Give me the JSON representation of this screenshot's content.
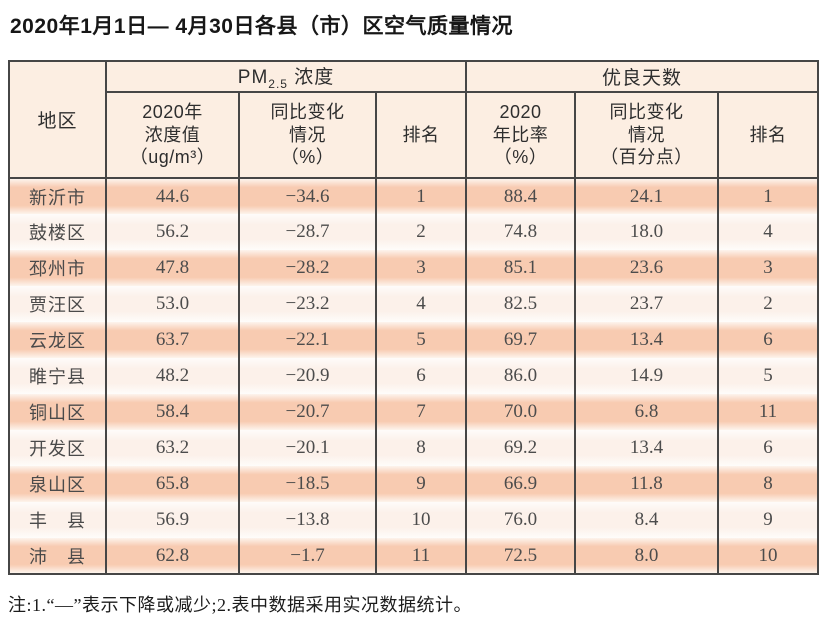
{
  "title": "2020年1月1日— 4月30日各县（市）区空气质量情况",
  "note": "注:1.“—”表示下降或减少;2.表中数据采用实况数据统计。",
  "table": {
    "region_header": "地区",
    "pm_group": {
      "prefix": "PM",
      "sub": "2.5",
      "suffix": " 浓度"
    },
    "good_group": "优良天数",
    "sub_headers": {
      "pm_value": "2020年\n浓度值\n（ug/m³）",
      "pm_change": "同比变化\n情况\n（%）",
      "pm_rank": "排名",
      "good_ratio": "2020\n年比率\n（%）",
      "good_change": "同比变化\n情况\n（百分点）",
      "good_rank": "排名"
    },
    "rows": [
      {
        "region": "新沂市",
        "pm_value": "44.6",
        "pm_change": "−34.6",
        "pm_rank": "1",
        "good_ratio": "88.4",
        "good_change": "24.1",
        "good_rank": "1"
      },
      {
        "region": "鼓楼区",
        "pm_value": "56.2",
        "pm_change": "−28.7",
        "pm_rank": "2",
        "good_ratio": "74.8",
        "good_change": "18.0",
        "good_rank": "4"
      },
      {
        "region": "邳州市",
        "pm_value": "47.8",
        "pm_change": "−28.2",
        "pm_rank": "3",
        "good_ratio": "85.1",
        "good_change": "23.6",
        "good_rank": "3"
      },
      {
        "region": "贾汪区",
        "pm_value": "53.0",
        "pm_change": "−23.2",
        "pm_rank": "4",
        "good_ratio": "82.5",
        "good_change": "23.7",
        "good_rank": "2"
      },
      {
        "region": "云龙区",
        "pm_value": "63.7",
        "pm_change": "−22.1",
        "pm_rank": "5",
        "good_ratio": "69.7",
        "good_change": "13.4",
        "good_rank": "6"
      },
      {
        "region": "睢宁县",
        "pm_value": "48.2",
        "pm_change": "−20.9",
        "pm_rank": "6",
        "good_ratio": "86.0",
        "good_change": "14.9",
        "good_rank": "5"
      },
      {
        "region": "铜山区",
        "pm_value": "58.4",
        "pm_change": "−20.7",
        "pm_rank": "7",
        "good_ratio": "70.0",
        "good_change": "6.8",
        "good_rank": "11"
      },
      {
        "region": "开发区",
        "pm_value": "63.2",
        "pm_change": "−20.1",
        "pm_rank": "8",
        "good_ratio": "69.2",
        "good_change": "13.4",
        "good_rank": "6"
      },
      {
        "region": "泉山区",
        "pm_value": "65.8",
        "pm_change": "−18.5",
        "pm_rank": "9",
        "good_ratio": "66.9",
        "good_change": "11.8",
        "good_rank": "8"
      },
      {
        "region": "丰　县",
        "pm_value": "56.9",
        "pm_change": "−13.8",
        "pm_rank": "10",
        "good_ratio": "76.0",
        "good_change": "8.4",
        "good_rank": "9"
      },
      {
        "region": "沛　县",
        "pm_value": "62.8",
        "pm_change": "−1.7",
        "pm_rank": "11",
        "good_ratio": "72.5",
        "good_change": "8.0",
        "good_rank": "10"
      }
    ]
  },
  "colors": {
    "row_dark": "#f8cbb1",
    "row_light": "#fcf1ea",
    "header_bg": "#fceee2",
    "border": "#464646"
  },
  "chart_data": {
    "type": "table",
    "title": "2020年1月1日—4月30日各县（市）区空气质量情况",
    "column_groups": [
      "PM2.5浓度",
      "优良天数"
    ],
    "columns": [
      "地区",
      "PM2.5 2020年浓度值（ug/m³）",
      "PM2.5 同比变化情况（%）",
      "PM2.5 排名",
      "优良天数 2020年比率（%）",
      "优良天数 同比变化情况（百分点）",
      "优良天数 排名"
    ],
    "rows": [
      [
        "新沂市",
        44.6,
        -34.6,
        1,
        88.4,
        24.1,
        1
      ],
      [
        "鼓楼区",
        56.2,
        -28.7,
        2,
        74.8,
        18.0,
        4
      ],
      [
        "邳州市",
        47.8,
        -28.2,
        3,
        85.1,
        23.6,
        3
      ],
      [
        "贾汪区",
        53.0,
        -23.2,
        4,
        82.5,
        23.7,
        2
      ],
      [
        "云龙区",
        63.7,
        -22.1,
        5,
        69.7,
        13.4,
        6
      ],
      [
        "睢宁县",
        48.2,
        -20.9,
        6,
        86.0,
        14.9,
        5
      ],
      [
        "铜山区",
        58.4,
        -20.7,
        7,
        70.0,
        6.8,
        11
      ],
      [
        "开发区",
        63.2,
        -20.1,
        8,
        69.2,
        13.4,
        6
      ],
      [
        "泉山区",
        65.8,
        -18.5,
        9,
        66.9,
        11.8,
        8
      ],
      [
        "丰县",
        56.9,
        -13.8,
        10,
        76.0,
        8.4,
        9
      ],
      [
        "沛县",
        62.8,
        -1.7,
        11,
        72.5,
        8.0,
        10
      ]
    ],
    "footnote": "注:1.“—”表示下降或减少;2.表中数据采用实况数据统计。"
  }
}
